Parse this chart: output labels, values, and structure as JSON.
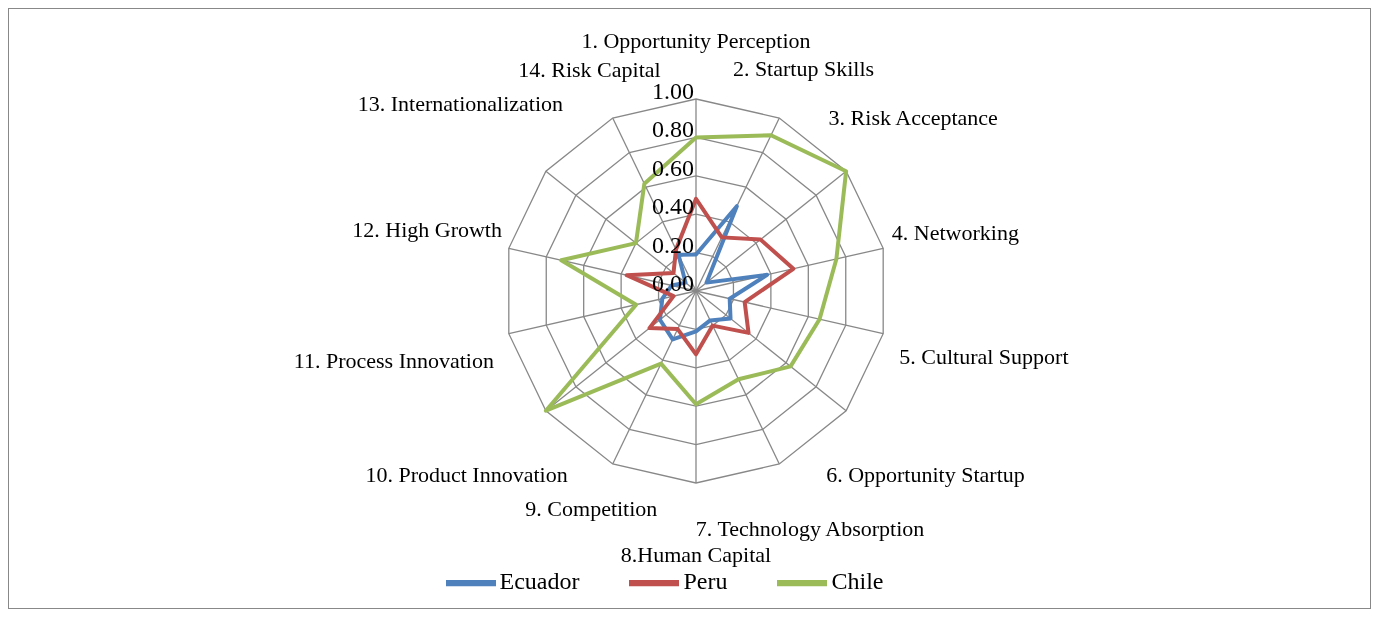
{
  "chart_data": {
    "type": "radar",
    "categories": [
      "1. Opportunity Perception",
      "2. Startup Skills",
      "3. Risk Acceptance",
      "4. Networking",
      "5. Cultural Support",
      "6. Opportunity Startup",
      "7. Technology Absorption",
      "8.Human Capital",
      "9. Competition",
      "10. Product Innovation",
      "11. Process Innovation",
      "12. High Growth",
      "13. Internationalization",
      "14. Risk Capital"
    ],
    "series": [
      {
        "name": "Ecuador",
        "color": "#4f81bd",
        "values": [
          0.19,
          0.49,
          0.07,
          0.38,
          0.18,
          0.23,
          0.17,
          0.21,
          0.28,
          0.24,
          0.18,
          0.13,
          0.07,
          0.21
        ]
      },
      {
        "name": "Peru",
        "color": "#c0504d",
        "values": [
          0.48,
          0.31,
          0.43,
          0.52,
          0.26,
          0.35,
          0.2,
          0.33,
          0.22,
          0.31,
          0.12,
          0.37,
          0.15,
          0.24
        ]
      },
      {
        "name": "Chile",
        "color": "#9bbb59",
        "values": [
          0.8,
          0.9,
          1.0,
          0.75,
          0.66,
          0.63,
          0.51,
          0.59,
          0.42,
          1.0,
          0.32,
          0.72,
          0.4,
          0.62
        ]
      }
    ],
    "ylim": [
      0,
      1
    ],
    "yticks": [
      {
        "value": 0,
        "label": "0.00"
      },
      {
        "value": 0.2,
        "label": "0.20"
      },
      {
        "value": 0.4,
        "label": "0.40"
      },
      {
        "value": 0.6,
        "label": "0.60"
      },
      {
        "value": 0.8,
        "label": "0.80"
      },
      {
        "value": 1,
        "label": "1.00"
      }
    ],
    "grid": true,
    "legend": "bottom",
    "marker": "none",
    "line_style": "solid"
  }
}
